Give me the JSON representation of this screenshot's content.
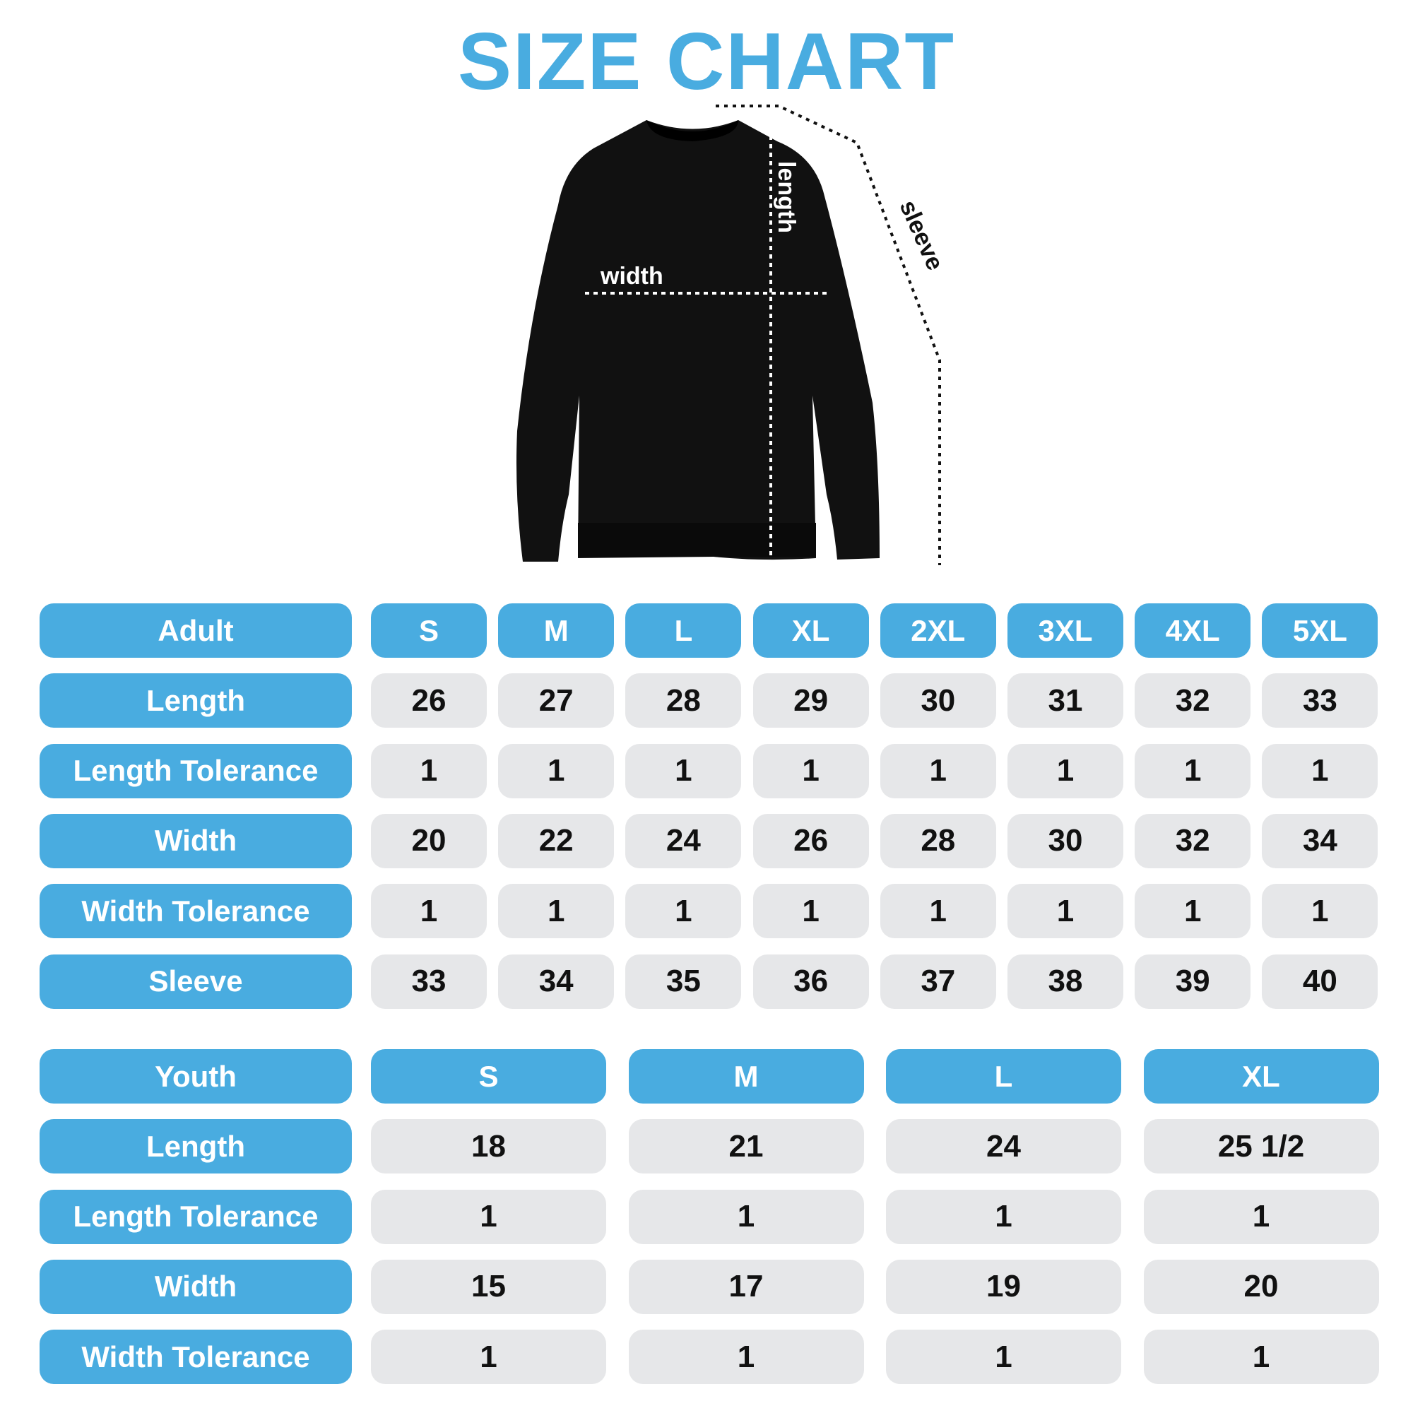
{
  "title": "SIZE CHART",
  "diagram": {
    "length_label": "length",
    "width_label": "width",
    "sleeve_label": "sleeve",
    "garment_color": "#111111"
  },
  "colors": {
    "accent": "#49ace0",
    "cell": "#e6e7e9"
  },
  "adult": {
    "header": "Adult",
    "sizes": [
      "S",
      "M",
      "L",
      "XL",
      "2XL",
      "3XL",
      "4XL",
      "5XL"
    ],
    "rows": [
      {
        "label": "Length",
        "values": [
          "26",
          "27",
          "28",
          "29",
          "30",
          "31",
          "32",
          "33"
        ]
      },
      {
        "label": "Length Tolerance",
        "values": [
          "1",
          "1",
          "1",
          "1",
          "1",
          "1",
          "1",
          "1"
        ]
      },
      {
        "label": "Width",
        "values": [
          "20",
          "22",
          "24",
          "26",
          "28",
          "30",
          "32",
          "34"
        ]
      },
      {
        "label": "Width Tolerance",
        "values": [
          "1",
          "1",
          "1",
          "1",
          "1",
          "1",
          "1",
          "1"
        ]
      },
      {
        "label": "Sleeve",
        "values": [
          "33",
          "34",
          "35",
          "36",
          "37",
          "38",
          "39",
          "40"
        ]
      }
    ]
  },
  "youth": {
    "header": "Youth",
    "sizes": [
      "S",
      "M",
      "L",
      "XL"
    ],
    "rows": [
      {
        "label": "Length",
        "values": [
          "18",
          "21",
          "24",
          "25 1/2"
        ]
      },
      {
        "label": "Length Tolerance",
        "values": [
          "1",
          "1",
          "1",
          "1"
        ]
      },
      {
        "label": "Width",
        "values": [
          "15",
          "17",
          "19",
          "20"
        ]
      },
      {
        "label": "Width Tolerance",
        "values": [
          "1",
          "1",
          "1",
          "1"
        ]
      }
    ]
  }
}
